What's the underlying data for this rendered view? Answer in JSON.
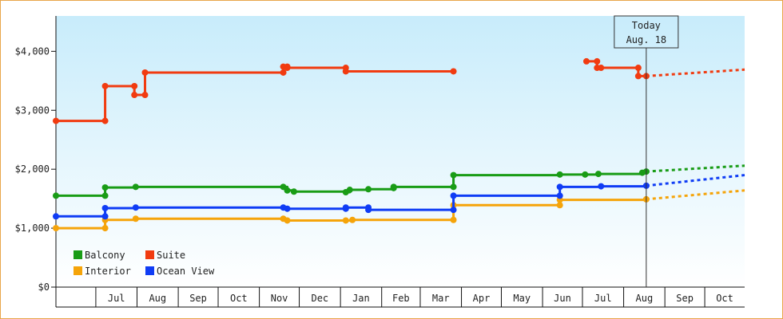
{
  "chart_data": {
    "type": "line",
    "title": "",
    "xlabel": "",
    "ylabel": "",
    "ylim": [
      0,
      4600
    ],
    "y_ticks": [
      0,
      1000,
      2000,
      3000,
      4000
    ],
    "y_tick_labels": [
      "$0",
      "$1,000",
      "$2,000",
      "$3,000",
      "$4,000"
    ],
    "x_range": [
      "2023-06-01",
      "2024-10-31"
    ],
    "x_tick_labels": [
      "Jul",
      "Aug",
      "Sep",
      "Oct",
      "Nov",
      "Dec",
      "Jan",
      "Feb",
      "Mar",
      "Apr",
      "May",
      "Jun",
      "Jul",
      "Aug",
      "Sep",
      "Oct"
    ],
    "step": true,
    "grid": false,
    "legend_position": "bottom-left",
    "background": "gradient light-blue",
    "today_marker": {
      "date": "2024-08-18",
      "label_line1": "Today",
      "label_line2": "Aug. 18"
    },
    "series": [
      {
        "name": "Balcony",
        "color": "#199c16",
        "points": [
          [
            "2023-06-01",
            1550
          ],
          [
            "2023-07-08",
            1550
          ],
          [
            "2023-07-08",
            1690
          ],
          [
            "2023-07-31",
            1700
          ],
          [
            "2023-11-19",
            1700
          ],
          [
            "2023-11-22",
            1640
          ],
          [
            "2023-11-27",
            1620
          ],
          [
            "2024-01-05",
            1610
          ],
          [
            "2024-01-08",
            1650
          ],
          [
            "2024-01-22",
            1660
          ],
          [
            "2024-02-10",
            1680
          ],
          [
            "2024-02-10",
            1700
          ],
          [
            "2024-03-26",
            1700
          ],
          [
            "2024-03-26",
            1900
          ],
          [
            "2024-06-14",
            1910
          ],
          [
            "2024-07-03",
            1910
          ],
          [
            "2024-07-13",
            1920
          ],
          [
            "2024-08-15",
            1940
          ],
          [
            "2024-08-18",
            1960
          ]
        ],
        "forecast": [
          [
            "2024-08-18",
            1960
          ],
          [
            "2024-10-31",
            2060
          ]
        ]
      },
      {
        "name": "Suite",
        "color": "#f13b10",
        "points": [
          [
            "2023-06-01",
            2820
          ],
          [
            "2023-07-08",
            2820
          ],
          [
            "2023-07-08",
            3410
          ],
          [
            "2023-07-30",
            3410
          ],
          [
            "2023-07-30",
            3260
          ],
          [
            "2023-08-07",
            3260
          ],
          [
            "2023-08-07",
            3640
          ],
          [
            "2023-11-19",
            3640
          ],
          [
            "2023-11-19",
            3740
          ],
          [
            "2023-11-22",
            3740
          ],
          [
            "2023-11-22",
            3720
          ],
          [
            "2024-01-05",
            3720
          ],
          [
            "2024-01-05",
            3660
          ],
          [
            "2024-03-26",
            3660
          ]
        ],
        "points_2": [
          [
            "2024-07-04",
            3830
          ],
          [
            "2024-07-12",
            3830
          ],
          [
            "2024-07-12",
            3720
          ],
          [
            "2024-07-15",
            3720
          ],
          [
            "2024-08-12",
            3720
          ],
          [
            "2024-08-12",
            3580
          ],
          [
            "2024-08-18",
            3580
          ]
        ],
        "forecast": [
          [
            "2024-08-18",
            3580
          ],
          [
            "2024-10-31",
            3690
          ]
        ]
      },
      {
        "name": "Interior",
        "color": "#f5a40a",
        "points": [
          [
            "2023-06-01",
            1000
          ],
          [
            "2023-07-08",
            1000
          ],
          [
            "2023-07-08",
            1140
          ],
          [
            "2023-07-31",
            1160
          ],
          [
            "2023-11-19",
            1160
          ],
          [
            "2023-11-22",
            1130
          ],
          [
            "2024-01-05",
            1130
          ],
          [
            "2024-01-10",
            1140
          ],
          [
            "2024-03-26",
            1140
          ],
          [
            "2024-03-26",
            1390
          ],
          [
            "2024-06-14",
            1390
          ],
          [
            "2024-06-14",
            1480
          ],
          [
            "2024-08-18",
            1490
          ]
        ],
        "forecast": [
          [
            "2024-08-18",
            1490
          ],
          [
            "2024-10-31",
            1640
          ]
        ]
      },
      {
        "name": "Ocean View",
        "color": "#0f3cf5",
        "points": [
          [
            "2023-06-01",
            1200
          ],
          [
            "2023-07-08",
            1200
          ],
          [
            "2023-07-08",
            1340
          ],
          [
            "2023-07-31",
            1350
          ],
          [
            "2023-11-19",
            1350
          ],
          [
            "2023-11-22",
            1330
          ],
          [
            "2024-01-05",
            1330
          ],
          [
            "2024-01-05",
            1350
          ],
          [
            "2024-01-22",
            1350
          ],
          [
            "2024-01-22",
            1310
          ],
          [
            "2024-03-26",
            1310
          ],
          [
            "2024-03-26",
            1550
          ],
          [
            "2024-06-14",
            1550
          ],
          [
            "2024-06-14",
            1700
          ],
          [
            "2024-07-15",
            1710
          ],
          [
            "2024-08-18",
            1720
          ]
        ],
        "forecast": [
          [
            "2024-08-18",
            1720
          ],
          [
            "2024-10-31",
            1900
          ]
        ]
      }
    ],
    "legend": [
      {
        "name": "Balcony",
        "color": "#199c16"
      },
      {
        "name": "Suite",
        "color": "#f13b10"
      },
      {
        "name": "Interior",
        "color": "#f5a40a"
      },
      {
        "name": "Ocean View",
        "color": "#0f3cf5"
      }
    ]
  }
}
